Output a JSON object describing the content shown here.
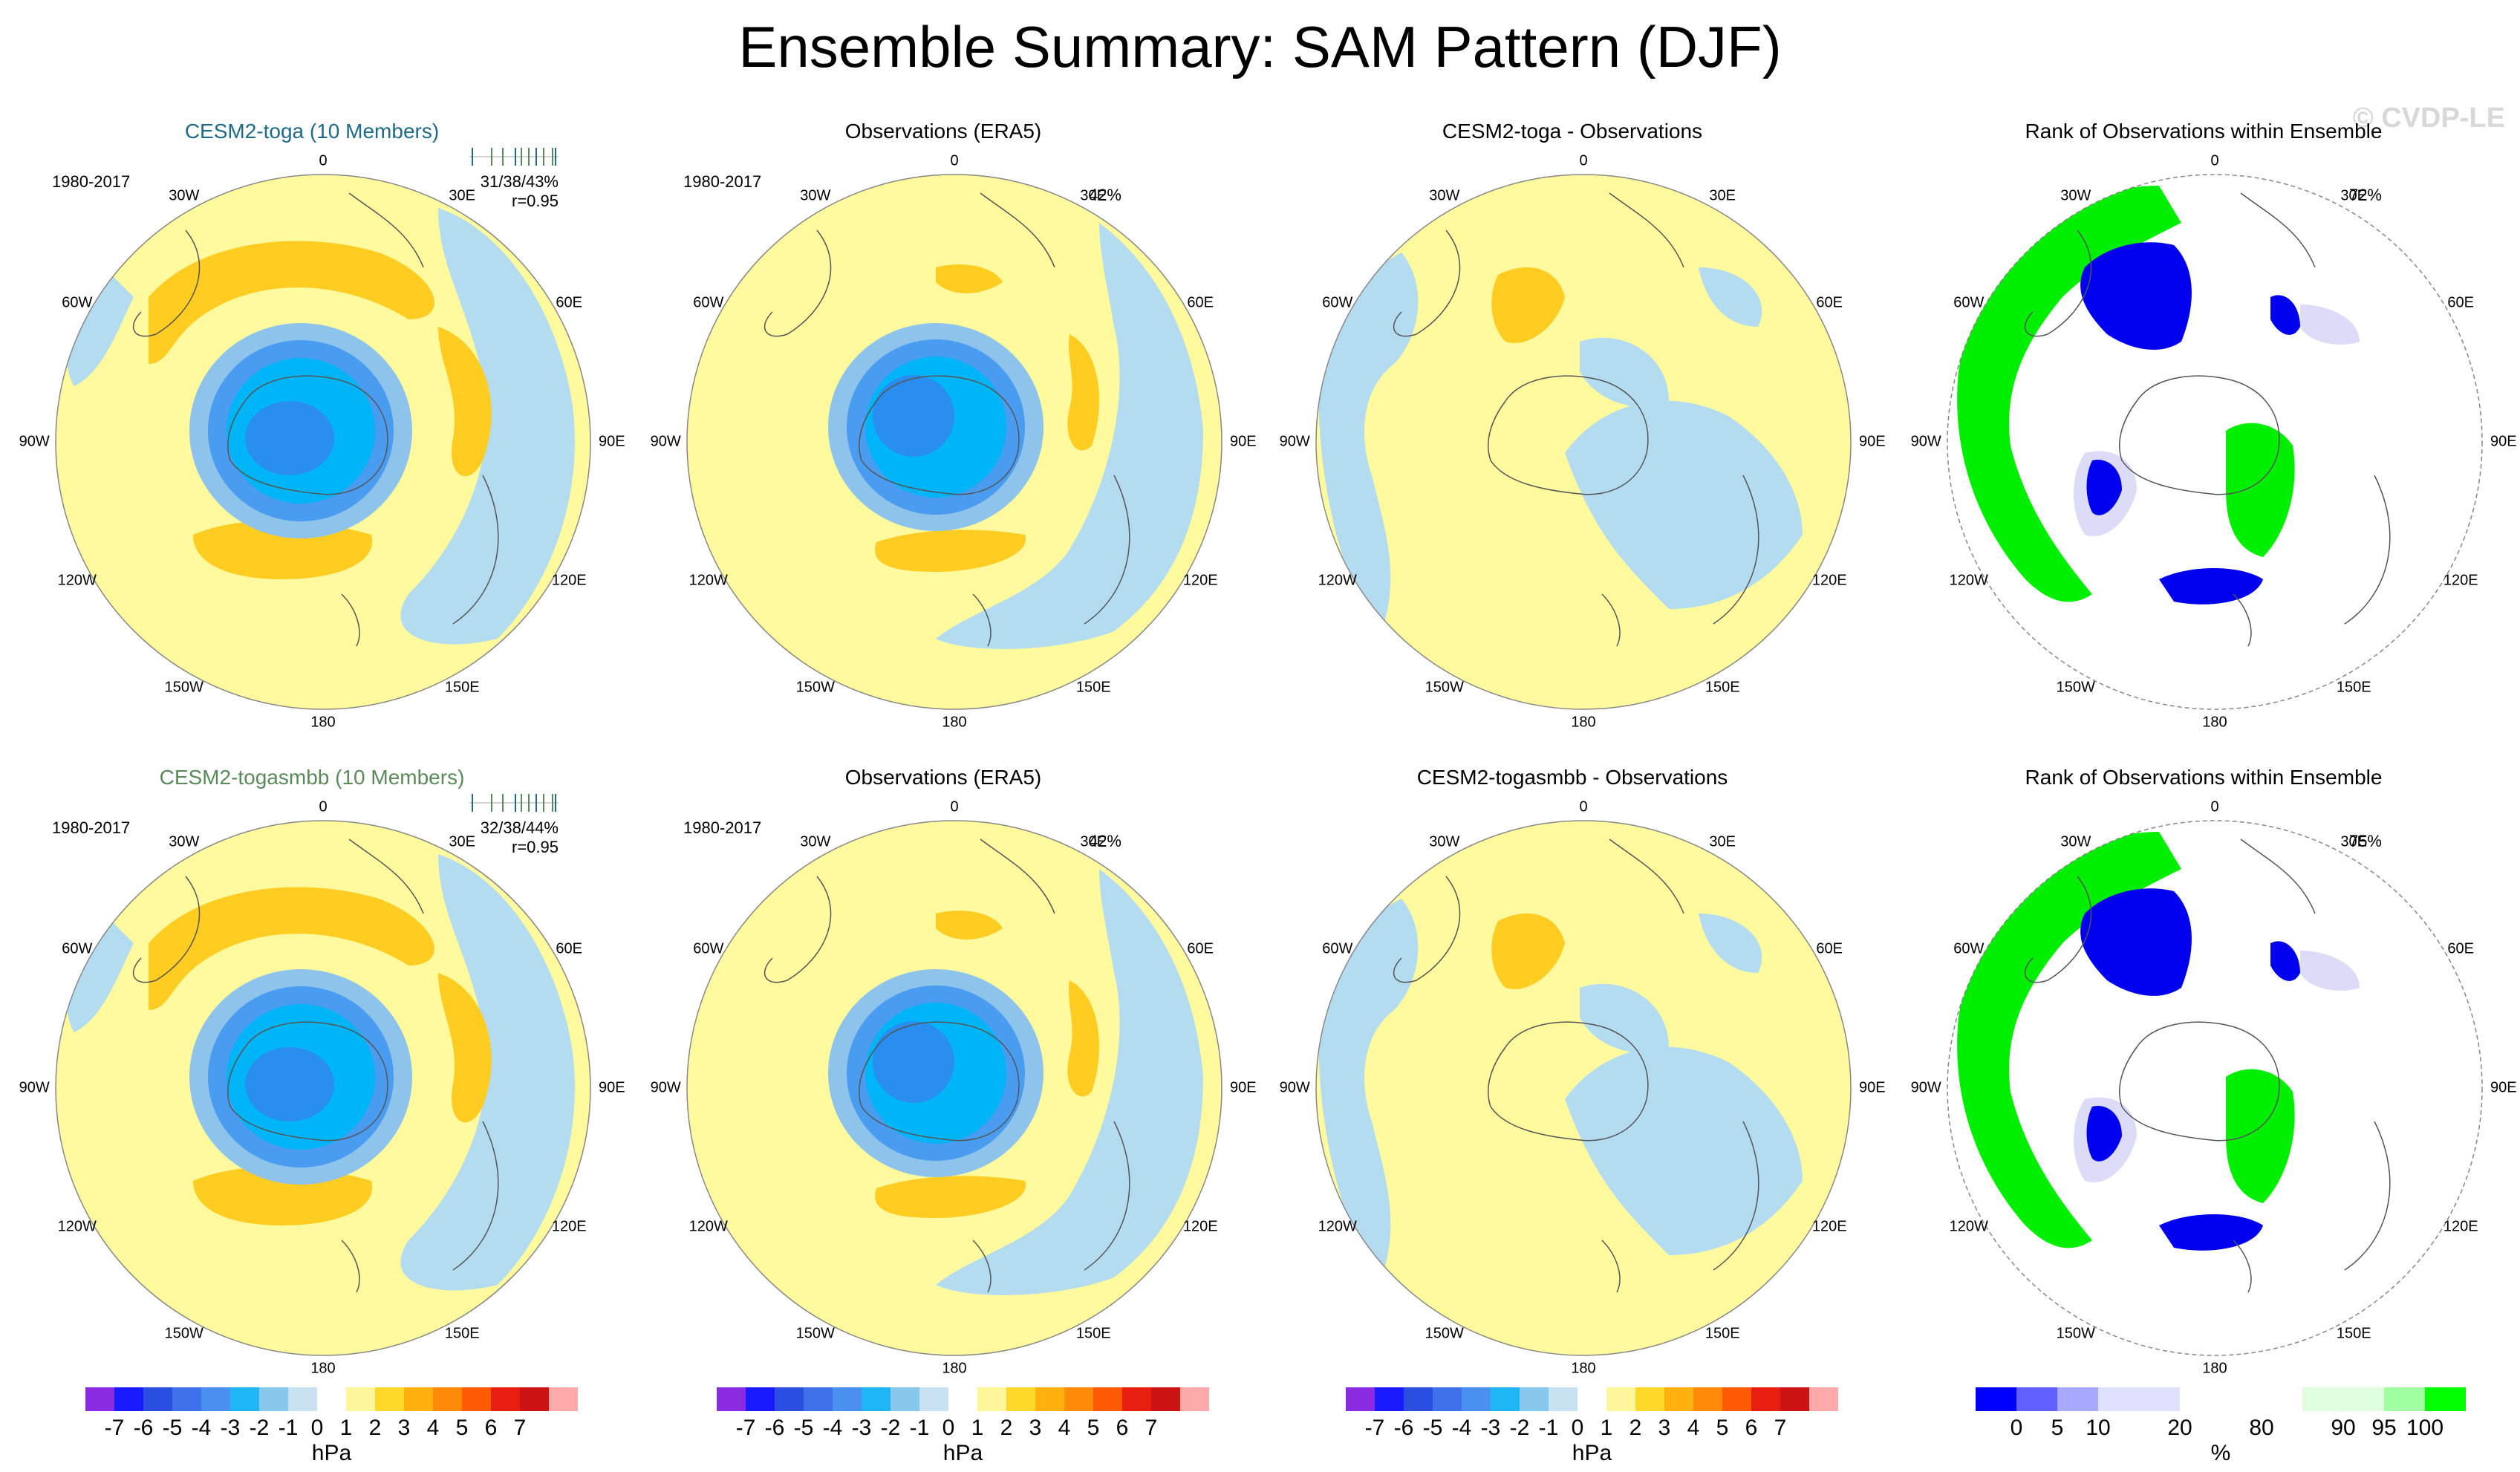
{
  "title": "Ensemble Summary: SAM Pattern (DJF)",
  "watermark": "© CVDP-LE",
  "panels": [
    {
      "title": "CESM2-toga (10 Members)",
      "title_color": "#1e6a8a",
      "years": "1980-2017",
      "stat1": "31/38/43%",
      "stat2": "r=0.95",
      "pct": ""
    },
    {
      "title": "Observations (ERA5)",
      "title_color": "#000000",
      "years": "1980-2017",
      "stat1": "",
      "stat2": "",
      "pct": "42%"
    },
    {
      "title": "CESM2-toga - Observations",
      "title_color": "#000000",
      "years": "",
      "stat1": "",
      "stat2": "",
      "pct": ""
    },
    {
      "title": "Rank of Observations within Ensemble",
      "title_color": "#000000",
      "years": "",
      "stat1": "",
      "stat2": "",
      "pct": "72%"
    },
    {
      "title": "CESM2-togasmbb (10 Members)",
      "title_color": "#5a8a5a",
      "years": "1980-2017",
      "stat1": "32/38/44%",
      "stat2": "r=0.95",
      "pct": ""
    },
    {
      "title": "Observations (ERA5)",
      "title_color": "#000000",
      "years": "1980-2017",
      "stat1": "",
      "stat2": "",
      "pct": "42%"
    },
    {
      "title": "CESM2-togasmbb - Observations",
      "title_color": "#000000",
      "years": "",
      "stat1": "",
      "stat2": "",
      "pct": ""
    },
    {
      "title": "Rank of Observations within Ensemble",
      "title_color": "#000000",
      "years": "",
      "stat1": "",
      "stat2": "",
      "pct": "75%"
    }
  ],
  "longitude_labels": {
    "top": "0",
    "bottom": "180",
    "upper_left": "30W",
    "upper_right": "30E",
    "mid_upper_left": "60W",
    "mid_upper_right": "60E",
    "left": "90W",
    "right": "90E",
    "mid_lower_left": "120W",
    "mid_lower_right": "120E",
    "lower_left": "150W",
    "lower_right": "150E"
  },
  "colorbar_pressure": {
    "colors": [
      "#8a2be2",
      "#1a1aff",
      "#2a4fe0",
      "#3f72ea",
      "#4a90f0",
      "#1fb6f5",
      "#88c8ec",
      "#c9e2f2",
      "#ffffff",
      "#fff59a",
      "#ffd92a",
      "#ffb20f",
      "#ff8a0a",
      "#ff5a05",
      "#e81e10",
      "#cc1414",
      "#ffaaaa"
    ],
    "labels": [
      "-7",
      "-6",
      "-5",
      "-4",
      "-3",
      "-2",
      "-1",
      "0",
      "1",
      "2",
      "3",
      "4",
      "5",
      "6",
      "7"
    ],
    "units": "hPa"
  },
  "colorbar_rank": {
    "colors": [
      "#0000ff",
      "#6060ff",
      "#a8a8ff",
      "#e0e0ff",
      "#e0e0ff",
      "#ffffff",
      "#ffffff",
      "#e0ffe0",
      "#e0ffe0",
      "#a0ffa0",
      "#00ff00"
    ],
    "labels": [
      "0",
      "5",
      "10",
      "20",
      "80",
      "90",
      "95",
      "100"
    ],
    "units": "%"
  },
  "colors": {
    "yellow": "#fffa9e",
    "orange": "#ffcc22",
    "light_blue": "#b4dcf0",
    "blue1": "#8ec4ec",
    "blue2": "#4a9cf0",
    "blue3": "#00b4f8",
    "rank_green": "#00ee00",
    "rank_blue": "#0000ee",
    "rank_lav": "#dcdcf8"
  }
}
